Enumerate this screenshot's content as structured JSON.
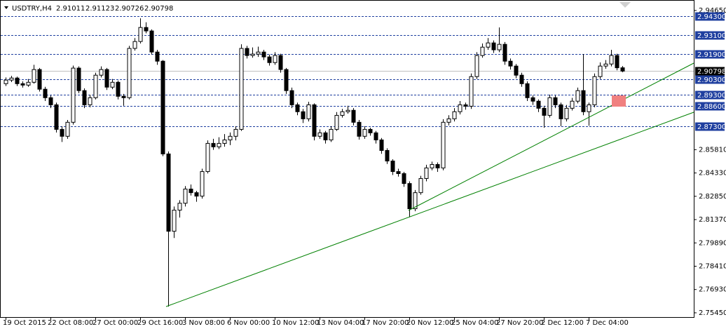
{
  "chart_data": {
    "type": "candlestick",
    "title": "USDTRY,H4",
    "candles": [
      [
        2.9,
        2.904,
        2.8985,
        2.9023
      ],
      [
        2.9023,
        2.905,
        2.901,
        2.9036
      ],
      [
        2.9036,
        2.9045,
        2.8985,
        2.9
      ],
      [
        2.9,
        2.9015,
        2.8975,
        2.8991
      ],
      [
        2.8991,
        2.903,
        2.898,
        2.9009
      ],
      [
        2.9009,
        2.912,
        2.9,
        2.909
      ],
      [
        2.909,
        2.91,
        2.895,
        2.8965
      ],
      [
        2.8965,
        2.898,
        2.889,
        2.8911
      ],
      [
        2.8911,
        2.8925,
        2.8845,
        2.8866
      ],
      [
        2.8866,
        2.888,
        2.869,
        2.871
      ],
      [
        2.871,
        2.873,
        2.863,
        2.8666
      ],
      [
        2.8666,
        2.877,
        2.865,
        2.8755
      ],
      [
        2.8755,
        2.9115,
        2.874,
        2.9099
      ],
      [
        2.9099,
        2.911,
        2.894,
        2.8956
      ],
      [
        2.8956,
        2.897,
        2.8845,
        2.8866
      ],
      [
        2.8866,
        2.893,
        2.885,
        2.8911
      ],
      [
        2.8911,
        2.907,
        2.89,
        2.9054
      ],
      [
        2.9054,
        2.911,
        2.904,
        2.909
      ],
      [
        2.909,
        2.91,
        2.896,
        2.8978
      ],
      [
        2.8978,
        2.903,
        2.8965,
        2.9009
      ],
      [
        2.9009,
        2.902,
        2.89,
        2.892
      ],
      [
        2.892,
        2.8935,
        2.886,
        2.8911
      ],
      [
        2.8911,
        2.924,
        2.89,
        2.9224
      ],
      [
        2.9224,
        2.929,
        2.921,
        2.9268
      ],
      [
        2.9268,
        2.9415,
        2.9255,
        2.9357
      ],
      [
        2.9357,
        2.939,
        2.932,
        2.9335
      ],
      [
        2.9335,
        2.9345,
        2.9185,
        2.9201
      ],
      [
        2.9201,
        2.9215,
        2.912,
        2.9143
      ],
      [
        2.9143,
        2.915,
        2.854,
        2.8554
      ],
      [
        2.8554,
        2.857,
        2.7585,
        2.8063
      ],
      [
        2.8063,
        2.822,
        2.802,
        2.8197
      ],
      [
        2.8197,
        2.826,
        2.815,
        2.8241
      ],
      [
        2.8241,
        2.835,
        2.822,
        2.8331
      ],
      [
        2.8331,
        2.836,
        2.829,
        2.8308
      ],
      [
        2.8308,
        2.832,
        2.825,
        2.8286
      ],
      [
        2.8286,
        2.846,
        2.827,
        2.8442
      ],
      [
        2.8442,
        2.864,
        2.843,
        2.8621
      ],
      [
        2.8621,
        2.865,
        2.858,
        2.8599
      ],
      [
        2.8599,
        2.866,
        2.8585,
        2.8621
      ],
      [
        2.8621,
        2.868,
        2.86,
        2.8643
      ],
      [
        2.8643,
        2.869,
        2.861,
        2.8666
      ],
      [
        2.8666,
        2.873,
        2.864,
        2.871
      ],
      [
        2.871,
        2.925,
        2.87,
        2.9224
      ],
      [
        2.9224,
        2.924,
        2.916,
        2.9179
      ],
      [
        2.9179,
        2.923,
        2.9165,
        2.9188
      ],
      [
        2.9188,
        2.9235,
        2.917,
        2.9201
      ],
      [
        2.9201,
        2.9215,
        2.915,
        2.917
      ],
      [
        2.917,
        2.9185,
        2.9115,
        2.9134
      ],
      [
        2.9134,
        2.92,
        2.912,
        2.9179
      ],
      [
        2.9179,
        2.919,
        2.907,
        2.909
      ],
      [
        2.909,
        2.91,
        2.8935,
        2.8956
      ],
      [
        2.8956,
        2.8975,
        2.8845,
        2.8866
      ],
      [
        2.8866,
        2.888,
        2.88,
        2.8822
      ],
      [
        2.8822,
        2.884,
        2.875,
        2.8777
      ],
      [
        2.8777,
        2.8885,
        2.876,
        2.8866
      ],
      [
        2.8866,
        2.8875,
        2.864,
        2.8666
      ],
      [
        2.8666,
        2.871,
        2.865,
        2.8688
      ],
      [
        2.8688,
        2.87,
        2.862,
        2.8643
      ],
      [
        2.8643,
        2.873,
        2.863,
        2.871
      ],
      [
        2.871,
        2.882,
        2.87,
        2.8799
      ],
      [
        2.8799,
        2.884,
        2.8785,
        2.8822
      ],
      [
        2.8822,
        2.886,
        2.881,
        2.8831
      ],
      [
        2.8831,
        2.8845,
        2.8735,
        2.8755
      ],
      [
        2.8755,
        2.877,
        2.8645,
        2.8666
      ],
      [
        2.8666,
        2.873,
        2.865,
        2.871
      ],
      [
        2.871,
        2.872,
        2.867,
        2.8688
      ],
      [
        2.8688,
        2.87,
        2.862,
        2.8643
      ],
      [
        2.8643,
        2.8655,
        2.8555,
        2.8576
      ],
      [
        2.8576,
        2.859,
        2.849,
        2.8509
      ],
      [
        2.8509,
        2.852,
        2.842,
        2.8442
      ],
      [
        2.8442,
        2.846,
        2.841,
        2.8429
      ],
      [
        2.8429,
        2.844,
        2.8345,
        2.8366
      ],
      [
        2.8366,
        2.838,
        2.8152,
        2.8206
      ],
      [
        2.8206,
        2.8325,
        2.819,
        2.8308
      ],
      [
        2.8308,
        2.8415,
        2.8295,
        2.8398
      ],
      [
        2.8398,
        2.8485,
        2.838,
        2.8465
      ],
      [
        2.8465,
        2.8505,
        2.845,
        2.8487
      ],
      [
        2.8487,
        2.85,
        2.844,
        2.8465
      ],
      [
        2.8465,
        2.8775,
        2.845,
        2.8755
      ],
      [
        2.8755,
        2.88,
        2.8735,
        2.8777
      ],
      [
        2.8777,
        2.8845,
        2.876,
        2.8822
      ],
      [
        2.8822,
        2.889,
        2.8805,
        2.8866
      ],
      [
        2.8866,
        2.888,
        2.8835,
        2.8857
      ],
      [
        2.8857,
        2.9065,
        2.884,
        2.9045
      ],
      [
        2.9045,
        2.92,
        2.903,
        2.9179
      ],
      [
        2.9179,
        2.9255,
        2.9165,
        2.9232
      ],
      [
        2.9232,
        2.929,
        2.9215,
        2.9259
      ],
      [
        2.9259,
        2.9275,
        2.9195,
        2.9215
      ],
      [
        2.9215,
        2.9357,
        2.92,
        2.925
      ],
      [
        2.925,
        2.9265,
        2.912,
        2.9143
      ],
      [
        2.9143,
        2.916,
        2.909,
        2.9112
      ],
      [
        2.9112,
        2.9125,
        2.9035,
        2.9054
      ],
      [
        2.9054,
        2.907,
        2.898,
        2.9
      ],
      [
        2.9,
        2.9015,
        2.889,
        2.8911
      ],
      [
        2.8911,
        2.8925,
        2.8865,
        2.8889
      ],
      [
        2.8889,
        2.89,
        2.882,
        2.8844
      ],
      [
        2.8844,
        2.886,
        2.872,
        2.8799
      ],
      [
        2.8799,
        2.893,
        2.8785,
        2.8911
      ],
      [
        2.8911,
        2.8925,
        2.8845,
        2.8866
      ],
      [
        2.8866,
        2.888,
        2.873,
        2.8777
      ],
      [
        2.8777,
        2.8865,
        2.876,
        2.8844
      ],
      [
        2.8844,
        2.891,
        2.883,
        2.8889
      ],
      [
        2.8889,
        2.8975,
        2.8875,
        2.8956
      ],
      [
        2.8956,
        2.9188,
        2.88,
        2.8822
      ],
      [
        2.8822,
        2.888,
        2.8733,
        2.8866
      ],
      [
        2.8866,
        2.9065,
        2.885,
        2.9045
      ],
      [
        2.9045,
        2.9135,
        2.903,
        2.9112
      ],
      [
        2.9112,
        2.915,
        2.9095,
        2.9125
      ],
      [
        2.9125,
        2.9215,
        2.911,
        2.9179
      ],
      [
        2.9179,
        2.919,
        2.9085,
        2.9101
      ],
      [
        2.91011,
        2.91123,
        2.90726,
        2.90798
      ]
    ],
    "categories": [
      "19 Oct 2015",
      null,
      null,
      null,
      null,
      null,
      null,
      null,
      "22 Oct 08:00",
      null,
      null,
      null,
      null,
      null,
      null,
      null,
      "27 Oct 00:00",
      null,
      null,
      null,
      null,
      null,
      null,
      null,
      "29 Oct 16:00",
      null,
      null,
      null,
      null,
      null,
      null,
      null,
      "3 Nov 08:00",
      null,
      null,
      null,
      null,
      null,
      null,
      null,
      "6 Nov 00:00",
      null,
      null,
      null,
      null,
      null,
      null,
      null,
      "10 Nov 12:00",
      null,
      null,
      null,
      null,
      null,
      null,
      null,
      "13 Nov 04:00",
      null,
      null,
      null,
      null,
      null,
      null,
      null,
      "17 Nov 20:00",
      null,
      null,
      null,
      null,
      null,
      null,
      null,
      "20 Nov 12:00",
      null,
      null,
      null,
      null,
      null,
      null,
      null,
      "25 Nov 04:00",
      null,
      null,
      null,
      null,
      null,
      null,
      null,
      "27 Nov 20:00",
      null,
      null,
      null,
      null,
      null,
      null,
      null,
      "2 Dec 12:00",
      null,
      null,
      null,
      null,
      null,
      null,
      null,
      "7 Dec 04:00",
      null,
      null,
      null,
      null,
      null,
      null
    ],
    "ylim": [
      2.7518,
      2.9527
    ],
    "yticks": [
      {
        "value": 2.7545,
        "label": "2.75450"
      },
      {
        "value": 2.7693,
        "label": "2.76930"
      },
      {
        "value": 2.7841,
        "label": "2.78410"
      },
      {
        "value": 2.7989,
        "label": "2.79890"
      },
      {
        "value": 2.8137,
        "label": "2.81370"
      },
      {
        "value": 2.8285,
        "label": "2.82850"
      },
      {
        "value": 2.8433,
        "label": "2.84330"
      },
      {
        "value": 2.8581,
        "label": "2.85810"
      },
      {
        "value": 2.9465,
        "label": "2.94650"
      }
    ],
    "levels": [
      {
        "value": 2.943,
        "label": "2.94300"
      },
      {
        "value": 2.931,
        "label": "2.93100"
      },
      {
        "value": 2.919,
        "label": "2.91900"
      },
      {
        "value": 2.903,
        "label": "2.90300"
      },
      {
        "value": 2.893,
        "label": "2.89300"
      },
      {
        "value": 2.886,
        "label": "2.88600"
      },
      {
        "value": 2.873,
        "label": "2.87300"
      }
    ],
    "level_color": "#1f3f9f",
    "bull_color": "#ffffff",
    "bear_color": "#000000"
  }
}
